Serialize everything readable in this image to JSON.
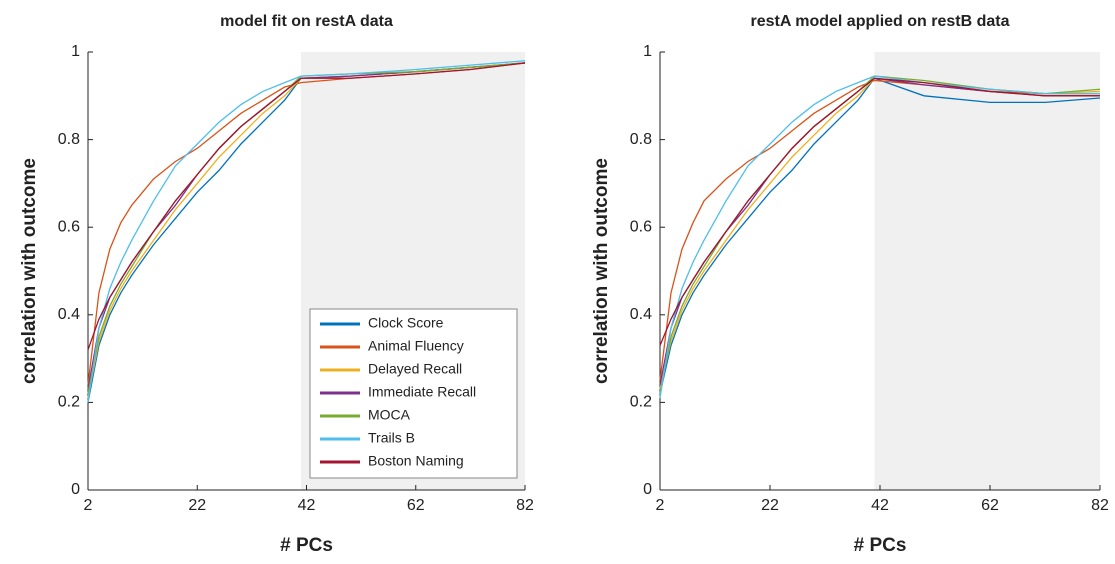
{
  "chart_data": [
    {
      "type": "line",
      "title": "model fit on restA data",
      "x_label": "# PCs",
      "y_label": "correlation with outcome",
      "x": [
        2,
        4,
        6,
        8,
        10,
        14,
        18,
        22,
        26,
        30,
        34,
        38,
        41,
        50,
        62,
        72,
        82
      ],
      "xlim": [
        2,
        82
      ],
      "ylim": [
        0,
        1
      ],
      "xticks": [
        2,
        22,
        42,
        62,
        82
      ],
      "yticks": [
        0,
        0.2,
        0.4,
        0.6,
        0.8,
        1
      ],
      "shaded_region": [
        41,
        82
      ],
      "shade_color": "#f0f0f0",
      "legend": "lower right",
      "series": [
        {
          "name": "Clock Score",
          "color": "#0072bd",
          "values": [
            0.2,
            0.33,
            0.4,
            0.45,
            0.49,
            0.56,
            0.62,
            0.68,
            0.73,
            0.79,
            0.84,
            0.89,
            0.94,
            0.945,
            0.955,
            0.965,
            0.975
          ]
        },
        {
          "name": "Animal Fluency",
          "color": "#d95319",
          "values": [
            0.24,
            0.45,
            0.55,
            0.61,
            0.65,
            0.71,
            0.75,
            0.78,
            0.82,
            0.86,
            0.89,
            0.92,
            0.93,
            0.94,
            0.95,
            0.96,
            0.975
          ]
        },
        {
          "name": "Delayed Recall",
          "color": "#edb120",
          "values": [
            0.21,
            0.34,
            0.41,
            0.46,
            0.5,
            0.57,
            0.64,
            0.7,
            0.76,
            0.81,
            0.86,
            0.9,
            0.94,
            0.945,
            0.955,
            0.965,
            0.975
          ]
        },
        {
          "name": "Immediate Recall",
          "color": "#7e2f8e",
          "values": [
            0.23,
            0.37,
            0.44,
            0.48,
            0.52,
            0.59,
            0.65,
            0.72,
            0.78,
            0.83,
            0.87,
            0.91,
            0.94,
            0.945,
            0.955,
            0.965,
            0.975
          ]
        },
        {
          "name": "MOCA",
          "color": "#77ac30",
          "values": [
            0.22,
            0.35,
            0.42,
            0.47,
            0.51,
            0.59,
            0.66,
            0.72,
            0.78,
            0.83,
            0.87,
            0.91,
            0.945,
            0.95,
            0.955,
            0.965,
            0.975
          ]
        },
        {
          "name": "Trails B",
          "color": "#4dbeee",
          "values": [
            0.2,
            0.37,
            0.46,
            0.52,
            0.57,
            0.66,
            0.74,
            0.79,
            0.84,
            0.88,
            0.91,
            0.93,
            0.945,
            0.95,
            0.96,
            0.97,
            0.98
          ]
        },
        {
          "name": "Boston Naming",
          "color": "#a2142f",
          "values": [
            0.32,
            0.39,
            0.44,
            0.48,
            0.52,
            0.59,
            0.66,
            0.72,
            0.78,
            0.83,
            0.87,
            0.91,
            0.94,
            0.94,
            0.95,
            0.96,
            0.975
          ]
        }
      ]
    },
    {
      "type": "line",
      "title": "restA model applied on restB data",
      "x_label": "# PCs",
      "y_label": "correlation with outcome",
      "x": [
        2,
        4,
        6,
        8,
        10,
        14,
        18,
        22,
        26,
        30,
        34,
        38,
        41,
        50,
        62,
        72,
        82
      ],
      "xlim": [
        2,
        82
      ],
      "ylim": [
        0,
        1
      ],
      "xticks": [
        2,
        22,
        42,
        62,
        82
      ],
      "yticks": [
        0,
        0.2,
        0.4,
        0.6,
        0.8,
        1
      ],
      "shaded_region": [
        41,
        82
      ],
      "shade_color": "#f0f0f0",
      "series": [
        {
          "color": "#0072bd",
          "values": [
            0.22,
            0.33,
            0.4,
            0.45,
            0.49,
            0.56,
            0.62,
            0.68,
            0.73,
            0.79,
            0.84,
            0.89,
            0.94,
            0.9,
            0.885,
            0.885,
            0.895
          ]
        },
        {
          "color": "#d95319",
          "values": [
            0.25,
            0.45,
            0.55,
            0.61,
            0.66,
            0.71,
            0.75,
            0.78,
            0.82,
            0.86,
            0.89,
            0.92,
            0.935,
            0.925,
            0.91,
            0.905,
            0.905
          ]
        },
        {
          "color": "#edb120",
          "values": [
            0.23,
            0.34,
            0.41,
            0.46,
            0.5,
            0.57,
            0.64,
            0.7,
            0.76,
            0.81,
            0.86,
            0.9,
            0.94,
            0.93,
            0.915,
            0.905,
            0.91
          ]
        },
        {
          "color": "#7e2f8e",
          "values": [
            0.24,
            0.37,
            0.44,
            0.48,
            0.52,
            0.59,
            0.65,
            0.72,
            0.78,
            0.83,
            0.87,
            0.91,
            0.94,
            0.925,
            0.91,
            0.9,
            0.9
          ]
        },
        {
          "color": "#77ac30",
          "values": [
            0.22,
            0.35,
            0.42,
            0.47,
            0.51,
            0.59,
            0.66,
            0.72,
            0.78,
            0.83,
            0.87,
            0.91,
            0.945,
            0.935,
            0.915,
            0.905,
            0.915
          ]
        },
        {
          "color": "#4dbeee",
          "values": [
            0.21,
            0.37,
            0.46,
            0.52,
            0.57,
            0.66,
            0.74,
            0.79,
            0.84,
            0.88,
            0.91,
            0.93,
            0.945,
            0.93,
            0.915,
            0.905,
            0.905
          ]
        },
        {
          "color": "#a2142f",
          "values": [
            0.33,
            0.39,
            0.44,
            0.48,
            0.52,
            0.59,
            0.66,
            0.72,
            0.78,
            0.83,
            0.87,
            0.91,
            0.94,
            0.93,
            0.91,
            0.9,
            0.9
          ]
        }
      ]
    }
  ]
}
